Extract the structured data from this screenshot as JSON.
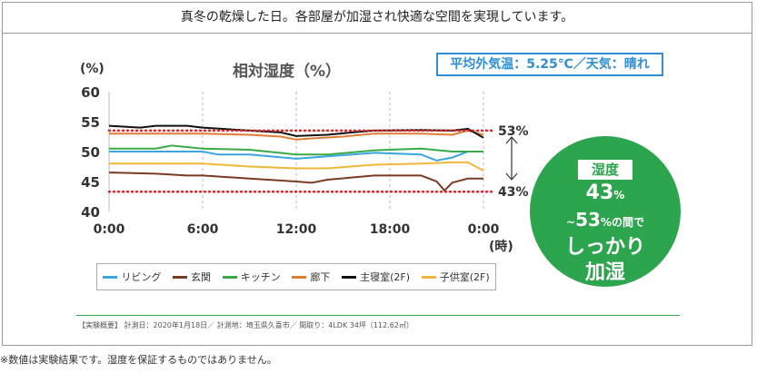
{
  "header": {
    "text": "真冬の乾燥した日。各部屋が加湿され快適な空間を実現しています。"
  },
  "weather": "平均外気温：5.25℃／天気：晴れ",
  "chart_data": {
    "type": "line",
    "title": "相対湿度（%）",
    "ylabel": "(%)",
    "xlabel": "(時)",
    "ylim": [
      40,
      60
    ],
    "xlim": [
      0,
      24
    ],
    "y_ticks": [
      "60",
      "55",
      "50",
      "45",
      "40"
    ],
    "y_tick_values": [
      60,
      55,
      50,
      45,
      40
    ],
    "x_ticks": [
      "0:00",
      "6:00",
      "12:00",
      "18:00",
      "0:00"
    ],
    "x_tick_values": [
      0,
      6,
      12,
      18,
      24
    ],
    "reference_lines": [
      {
        "label": "53%",
        "value": 53.5,
        "color": "#d9262c"
      },
      {
        "label": "43%",
        "value": 43.3,
        "color": "#d9262c"
      }
    ],
    "grid": "vertical dashed",
    "series": [
      {
        "name": "リビング",
        "color": "#3aa6dd",
        "x": [
          0,
          3,
          5,
          6,
          7,
          9,
          12,
          14,
          17,
          20,
          21,
          22,
          23,
          24
        ],
        "y": [
          50,
          50,
          50,
          50,
          49.5,
          49.5,
          48.8,
          49.2,
          49.8,
          49.5,
          48.5,
          49,
          50,
          50
        ]
      },
      {
        "name": "玄関",
        "color": "#7a3b22",
        "x": [
          0,
          3,
          5,
          6,
          9,
          12,
          13,
          14,
          17,
          20,
          21,
          21.5,
          22,
          23,
          24
        ],
        "y": [
          46.5,
          46.3,
          46,
          46,
          45.5,
          45,
          44.8,
          45.3,
          46,
          46,
          45,
          43.5,
          44.8,
          45.5,
          45.5
        ]
      },
      {
        "name": "キッチン",
        "color": "#3aaa48",
        "x": [
          0,
          3,
          4,
          6,
          9,
          12,
          14,
          17,
          20,
          22,
          23,
          24
        ],
        "y": [
          50.5,
          50.5,
          51,
          50.5,
          50.3,
          49.5,
          49.5,
          50.2,
          50.5,
          50,
          50,
          50
        ]
      },
      {
        "name": "廊下",
        "color": "#e07d34",
        "x": [
          0,
          3,
          5,
          6,
          9,
          11,
          12,
          13,
          15,
          17,
          20,
          22,
          23,
          24
        ],
        "y": [
          53,
          53,
          53,
          53,
          52.8,
          52.5,
          52,
          52.2,
          52.5,
          53,
          53,
          52.8,
          53.5,
          52.8
        ]
      },
      {
        "name": "主寝室(2F)",
        "color": "#111111",
        "x": [
          0,
          2,
          3,
          5,
          6,
          9,
          11,
          12,
          14,
          16,
          17,
          20,
          22,
          23,
          24
        ],
        "y": [
          54.3,
          54,
          54.3,
          54.3,
          54,
          53.5,
          53.2,
          52.6,
          52.8,
          53.3,
          53.5,
          53.6,
          53.5,
          53.8,
          52.3
        ]
      },
      {
        "name": "子供室(2F)",
        "color": "#f0b73a",
        "x": [
          0,
          3,
          6,
          9,
          12,
          14,
          17,
          20,
          22,
          23,
          24
        ],
        "y": [
          48,
          48,
          48,
          47.5,
          47.2,
          47.2,
          47.8,
          48,
          48.2,
          48.2,
          46.8
        ]
      }
    ]
  },
  "circle": {
    "badge": "湿度",
    "line1": "43",
    "line1_small": "%",
    "line2_prefix": "~",
    "line2": "53",
    "line2_small": "%の間で",
    "line3": "しっかり",
    "line4": "加湿"
  },
  "summary": "【実験概要】 計測日：2020年1月18日／ 計測地：埼玉県久喜市／ 間取り：4LDK 34坪（112.62㎡）",
  "footnote": "※数値は実験結果です。湿度を保証するものではありません。"
}
